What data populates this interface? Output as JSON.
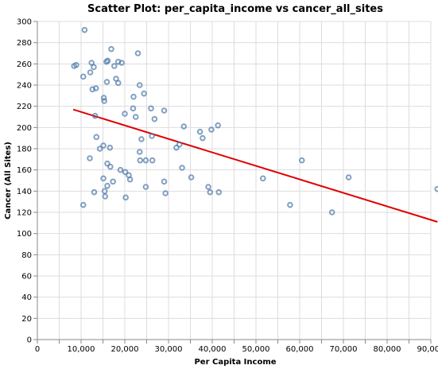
{
  "chart_data": {
    "type": "scatter",
    "title": "Scatter Plot: per_capita_income vs cancer_all_sites",
    "xlabel": "Per Capita Income",
    "ylabel": "Cancer (All Sites)",
    "xlim": [
      0,
      90000
    ],
    "ylim": [
      0,
      300
    ],
    "x_ticks": [
      "0",
      "10,000",
      "20,000",
      "30,000",
      "40,000",
      "50,000",
      "60,000",
      "70,000",
      "80,000",
      "90,000"
    ],
    "y_ticks": [
      "0",
      "20",
      "40",
      "60",
      "80",
      "100",
      "120",
      "140",
      "160",
      "180",
      "200",
      "220",
      "240",
      "260",
      "280",
      "300"
    ],
    "grid": true,
    "point_color": "#4c78a8",
    "trend_color": "#e00000",
    "trend_line": {
      "x": [
        8200,
        91500
      ],
      "y": [
        217,
        111
      ]
    },
    "points": [
      {
        "x": 10800,
        "y": 292
      },
      {
        "x": 8400,
        "y": 258
      },
      {
        "x": 8900,
        "y": 259
      },
      {
        "x": 10500,
        "y": 248
      },
      {
        "x": 12400,
        "y": 261
      },
      {
        "x": 12900,
        "y": 257
      },
      {
        "x": 12100,
        "y": 252
      },
      {
        "x": 12600,
        "y": 236
      },
      {
        "x": 13400,
        "y": 237
      },
      {
        "x": 13200,
        "y": 211
      },
      {
        "x": 15200,
        "y": 228
      },
      {
        "x": 15300,
        "y": 225
      },
      {
        "x": 15800,
        "y": 262
      },
      {
        "x": 16100,
        "y": 263
      },
      {
        "x": 15900,
        "y": 243
      },
      {
        "x": 16900,
        "y": 274
      },
      {
        "x": 17600,
        "y": 258
      },
      {
        "x": 18500,
        "y": 262
      },
      {
        "x": 19300,
        "y": 261
      },
      {
        "x": 18000,
        "y": 246
      },
      {
        "x": 18500,
        "y": 242
      },
      {
        "x": 23000,
        "y": 270
      },
      {
        "x": 23400,
        "y": 240
      },
      {
        "x": 24400,
        "y": 232
      },
      {
        "x": 22000,
        "y": 229
      },
      {
        "x": 20000,
        "y": 213
      },
      {
        "x": 21900,
        "y": 218
      },
      {
        "x": 22500,
        "y": 210
      },
      {
        "x": 26000,
        "y": 218
      },
      {
        "x": 29000,
        "y": 216
      },
      {
        "x": 26800,
        "y": 208
      },
      {
        "x": 13500,
        "y": 191
      },
      {
        "x": 14300,
        "y": 180
      },
      {
        "x": 15100,
        "y": 183
      },
      {
        "x": 16600,
        "y": 181
      },
      {
        "x": 12000,
        "y": 171
      },
      {
        "x": 23800,
        "y": 189
      },
      {
        "x": 26200,
        "y": 192
      },
      {
        "x": 23400,
        "y": 177
      },
      {
        "x": 23500,
        "y": 169
      },
      {
        "x": 24800,
        "y": 169
      },
      {
        "x": 26300,
        "y": 169
      },
      {
        "x": 16000,
        "y": 166
      },
      {
        "x": 16700,
        "y": 163
      },
      {
        "x": 19000,
        "y": 160
      },
      {
        "x": 20100,
        "y": 158
      },
      {
        "x": 20900,
        "y": 155
      },
      {
        "x": 15100,
        "y": 152
      },
      {
        "x": 21200,
        "y": 151
      },
      {
        "x": 17300,
        "y": 149
      },
      {
        "x": 16000,
        "y": 145
      },
      {
        "x": 15400,
        "y": 140
      },
      {
        "x": 13000,
        "y": 139
      },
      {
        "x": 15500,
        "y": 135
      },
      {
        "x": 20200,
        "y": 134
      },
      {
        "x": 10500,
        "y": 127
      },
      {
        "x": 24800,
        "y": 144
      },
      {
        "x": 29000,
        "y": 149
      },
      {
        "x": 29300,
        "y": 138
      },
      {
        "x": 33500,
        "y": 201
      },
      {
        "x": 31800,
        "y": 181
      },
      {
        "x": 32500,
        "y": 184
      },
      {
        "x": 33100,
        "y": 162
      },
      {
        "x": 35200,
        "y": 153
      },
      {
        "x": 37200,
        "y": 196
      },
      {
        "x": 37800,
        "y": 190
      },
      {
        "x": 39800,
        "y": 198
      },
      {
        "x": 41300,
        "y": 202
      },
      {
        "x": 39100,
        "y": 144
      },
      {
        "x": 39500,
        "y": 139
      },
      {
        "x": 41500,
        "y": 139
      },
      {
        "x": 51600,
        "y": 152
      },
      {
        "x": 57800,
        "y": 127
      },
      {
        "x": 60500,
        "y": 169
      },
      {
        "x": 67400,
        "y": 120
      },
      {
        "x": 71200,
        "y": 153
      },
      {
        "x": 91500,
        "y": 142
      }
    ]
  }
}
